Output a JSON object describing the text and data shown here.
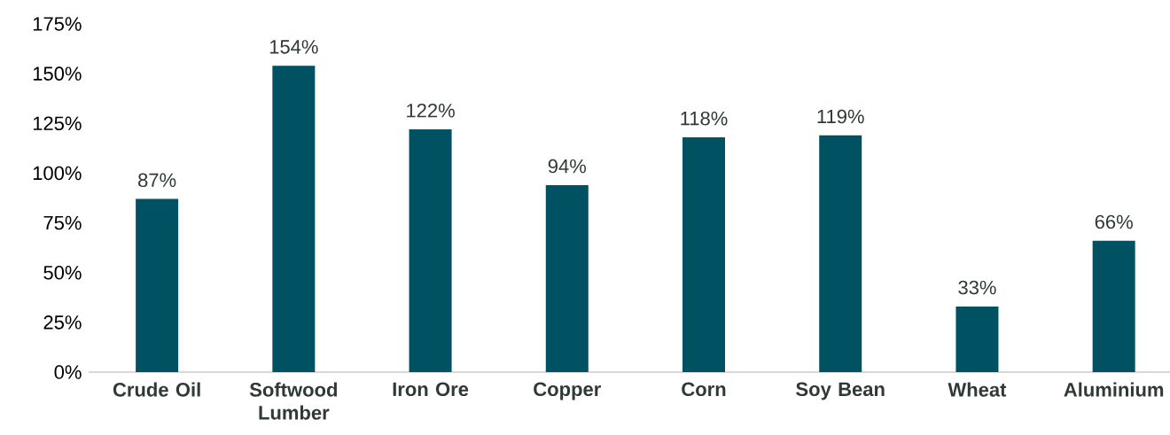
{
  "chart_data": {
    "type": "bar",
    "categories": [
      "Crude Oil",
      "Softwood Lumber",
      "Iron Ore",
      "Copper",
      "Corn",
      "Soy Bean",
      "Wheat",
      "Aluminium"
    ],
    "values": [
      87,
      154,
      122,
      94,
      118,
      119,
      33,
      66
    ],
    "value_labels": [
      "87%",
      "154%",
      "122%",
      "94%",
      "118%",
      "119%",
      "33%",
      "66%"
    ],
    "color": "#005162",
    "ylim": [
      0,
      175
    ],
    "yticks": [
      {
        "value": 0,
        "label": "0%"
      },
      {
        "value": 25,
        "label": "25%"
      },
      {
        "value": 50,
        "label": "50%"
      },
      {
        "value": 75,
        "label": "75%"
      },
      {
        "value": 100,
        "label": "100%"
      },
      {
        "value": 125,
        "label": "125%"
      },
      {
        "value": 150,
        "label": "150%"
      },
      {
        "value": 175,
        "label": "175%"
      }
    ]
  }
}
